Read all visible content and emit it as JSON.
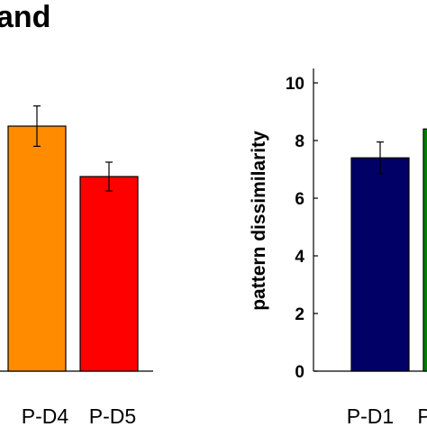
{
  "title_fragment": "and",
  "chart_data": [
    {
      "type": "bar",
      "categories": [
        "P-D4",
        "P-D5"
      ],
      "values": [
        8.5,
        6.75
      ],
      "errors": [
        0.7,
        0.5
      ],
      "colors": [
        "#FF8C00",
        "#FF0000"
      ],
      "ylim": [
        0,
        10.5
      ],
      "ylabel": ""
    },
    {
      "type": "bar",
      "categories": [
        "P-D1",
        "P"
      ],
      "values": [
        7.4,
        8.4
      ],
      "errors": [
        0.55,
        0
      ],
      "colors": [
        "#000066",
        "#008000"
      ],
      "ylim": [
        0,
        10.5
      ],
      "ylabel": "pattern dissimilarity",
      "yticks": [
        "0",
        "2",
        "4",
        "6",
        "8",
        "10"
      ]
    }
  ]
}
